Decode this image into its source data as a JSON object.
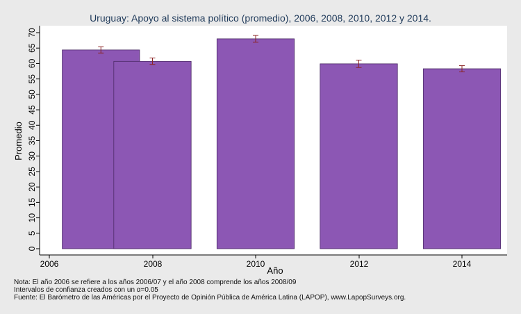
{
  "chart_data": {
    "type": "bar",
    "title": "Uruguay: Apoyo al sistema político (promedio), 2006, 2008, 2010, 2012 y 2014.",
    "xlabel": "Año",
    "ylabel": "Promedio",
    "xlim": [
      2006,
      2014.7
    ],
    "ylim": [
      0,
      70
    ],
    "x_ticks": [
      "2006",
      "2008",
      "2010",
      "2012",
      "2014"
    ],
    "y_ticks": [
      0,
      5,
      10,
      15,
      20,
      25,
      30,
      35,
      40,
      45,
      50,
      55,
      60,
      65,
      70
    ],
    "grid": false,
    "bars": [
      {
        "x_start": 2006.25,
        "x_end": 2007.75,
        "value": 64.4,
        "ci_low": 63.4,
        "ci_high": 65.4
      },
      {
        "x_start": 2007.25,
        "x_end": 2008.75,
        "value": 60.7,
        "ci_low": 59.7,
        "ci_high": 61.8
      },
      {
        "x_start": 2009.25,
        "x_end": 2010.75,
        "value": 68.0,
        "ci_low": 66.9,
        "ci_high": 69.1
      },
      {
        "x_start": 2011.25,
        "x_end": 2012.75,
        "value": 59.9,
        "ci_low": 58.7,
        "ci_high": 61.1
      },
      {
        "x_start": 2013.25,
        "x_end": 2014.75,
        "value": 58.3,
        "ci_low": 57.3,
        "ci_high": 59.3
      }
    ],
    "bar_color": "#8c57b4",
    "bar_edge_color": "#4b2a66",
    "error_bar_color": "#8b2323"
  },
  "notes": [
    "Nota: El año 2006 se refiere a los años 2006/07 y el año 2008 comprende los años 2008/09",
    "Intervalos de confianza creados con un α=0.05",
    "Fuente: El Barómetro de las Américas por el Proyecto de Opinión Pública de América Latina (LAPOP), www.LapopSurveys.org."
  ]
}
